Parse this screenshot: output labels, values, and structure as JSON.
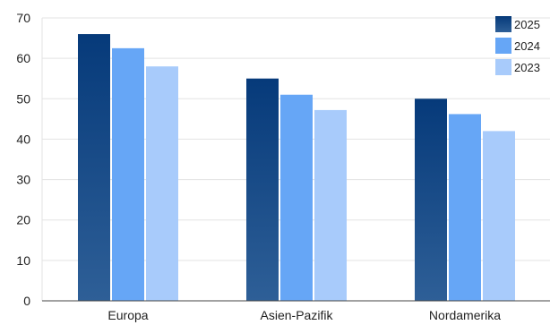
{
  "chart_data": {
    "type": "bar",
    "categories": [
      "Europa",
      "Asien-Pazifik",
      "Nordamerika"
    ],
    "series": [
      {
        "name": "2025",
        "values": [
          66,
          55,
          50
        ],
        "color": "#0b3c7c"
      },
      {
        "name": "2024",
        "values": [
          62.5,
          51,
          46.2
        ],
        "color": "#66a6f6"
      },
      {
        "name": "2023",
        "values": [
          58,
          47.2,
          42
        ],
        "color": "#a8cbfb"
      }
    ],
    "ylim": [
      0,
      70
    ],
    "yticks": [
      0,
      10,
      20,
      30,
      40,
      50,
      60,
      70
    ],
    "grid": true,
    "legend_position": "top-right",
    "xlabel": "",
    "ylabel": "",
    "title": ""
  }
}
